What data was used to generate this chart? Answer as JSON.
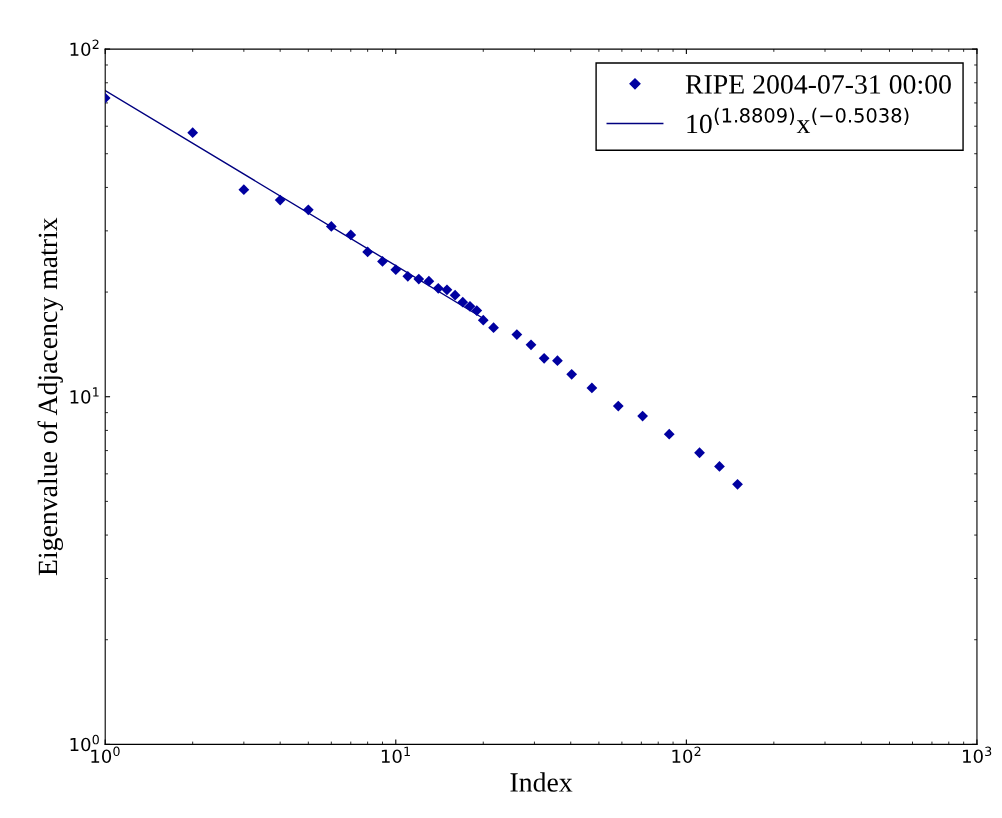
{
  "chart_data": {
    "type": "scatter",
    "xlabel": "Index",
    "ylabel": "Eigenvalue of Adjacency matrix",
    "log": "xy",
    "grid": false,
    "legend": "top right",
    "xlim": [
      1,
      1000
    ],
    "ylim": [
      1,
      100
    ],
    "xticks": [
      {
        "value": 1,
        "label": "10$^{0}$"
      },
      {
        "value": 10,
        "label": "10$^{1}$"
      },
      {
        "value": 100,
        "label": "10$^{2}$"
      },
      {
        "value": 1000,
        "label": "10$^{3}$"
      }
    ],
    "yticks": [
      {
        "value": 1,
        "label": "10$^{0}$"
      },
      {
        "value": 10,
        "label": "10$^{1}$"
      },
      {
        "value": 100,
        "label": "10$^{2}$"
      }
    ],
    "series": [
      {
        "name": "RIPE 2004-07-31 00:00",
        "marker": "diamond",
        "color": "#0000a0",
        "x": [
          1,
          2,
          3,
          4,
          5,
          6,
          7,
          8,
          9,
          10,
          11,
          12,
          13,
          14,
          15,
          16,
          17,
          18,
          19,
          20,
          21.7,
          26.1,
          29.2,
          32.4,
          36,
          40.3,
          47.3,
          58.3,
          70.7,
          87.3,
          111,
          130,
          150
        ],
        "values": [
          72.3,
          57.5,
          39.4,
          36.8,
          34.5,
          30.9,
          29.2,
          26.1,
          24.5,
          23.2,
          22.2,
          21.8,
          21.5,
          20.5,
          20.3,
          19.6,
          18.7,
          18.2,
          17.7,
          16.6,
          15.8,
          15.1,
          14.1,
          12.9,
          12.7,
          11.6,
          10.6,
          9.4,
          8.8,
          7.8,
          6.9,
          6.3,
          5.6
        ]
      },
      {
        "name": "10$^{(1.8809)}$x$^{(−0.5038)}$",
        "type": "line",
        "marker": "none",
        "line_style": "solid",
        "color": "#000080",
        "x": [
          1,
          20
        ],
        "values": [
          76.0,
          16.8
        ]
      }
    ]
  }
}
